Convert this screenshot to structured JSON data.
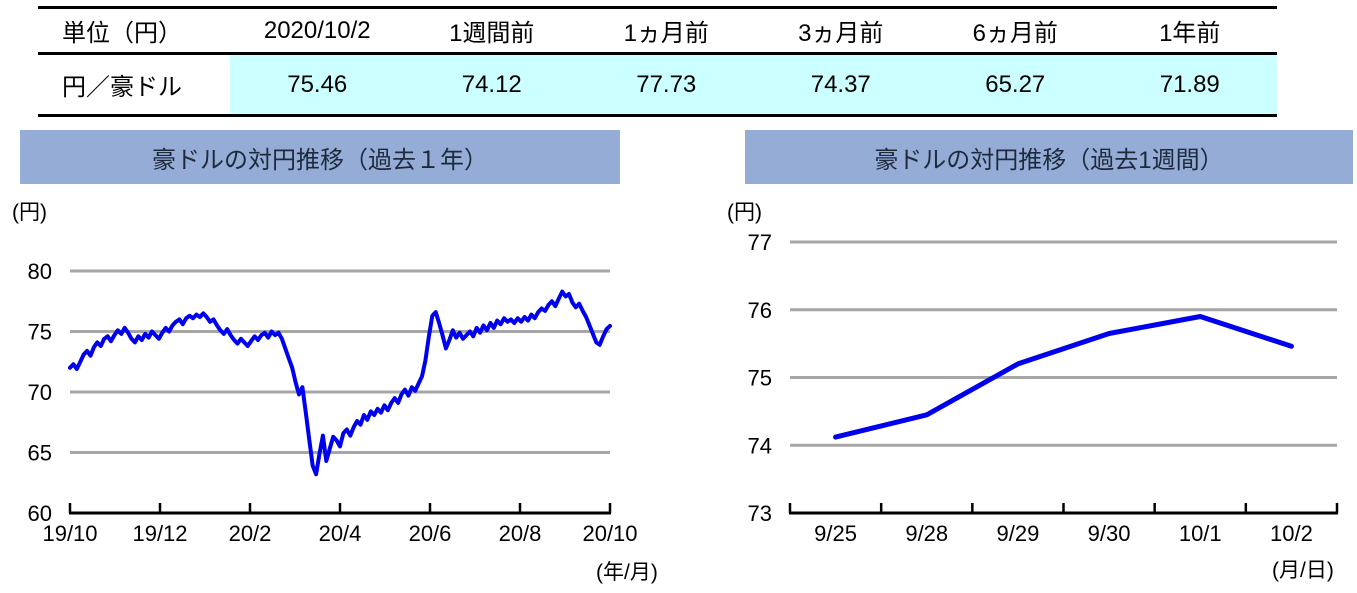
{
  "colors": {
    "line": "#0000EE",
    "gridline": "#A6A6A6",
    "title_bar_bg": "#95ACD6",
    "highlight_cell_bg": "#CCFFFF",
    "axis": "#000000"
  },
  "table": {
    "unit_header": "単位（円）",
    "headers": [
      "2020/10/2",
      "1週間前",
      "1ヵ月前",
      "3ヵ月前",
      "6ヵ月前",
      "1年前"
    ],
    "row_label": "円／豪ドル",
    "values": [
      "75.46",
      "74.12",
      "77.73",
      "74.37",
      "65.27",
      "71.89"
    ]
  },
  "chart_data": [
    {
      "type": "line",
      "title": "豪ドルの対円推移（過去１年）",
      "unit_label": "(円)",
      "x_axis_unit": "(年/月)",
      "x_tick_labels": [
        "19/10",
        "19/12",
        "20/2",
        "20/4",
        "20/6",
        "20/8",
        "20/10"
      ],
      "x_mode": "span",
      "ylim": [
        60,
        80
      ],
      "y_ticks": [
        60,
        65,
        70,
        75,
        80
      ],
      "grid": true,
      "legend": "none",
      "line_color": "#0000EE",
      "line_width": 4,
      "series": [
        {
          "name": "円/豪ドル",
          "values": [
            72.0,
            72.3,
            71.9,
            72.5,
            73.1,
            73.4,
            73.0,
            73.7,
            74.1,
            73.8,
            74.4,
            74.6,
            74.2,
            74.7,
            75.1,
            74.8,
            75.3,
            74.9,
            74.4,
            74.1,
            74.6,
            74.3,
            74.8,
            74.5,
            75.0,
            74.7,
            74.4,
            74.9,
            75.3,
            75.0,
            75.5,
            75.8,
            76.0,
            75.6,
            76.1,
            76.3,
            76.1,
            76.4,
            76.2,
            76.5,
            76.2,
            75.8,
            76.0,
            75.5,
            75.1,
            74.8,
            75.2,
            74.7,
            74.3,
            74.0,
            74.4,
            74.1,
            73.8,
            74.2,
            74.6,
            74.3,
            74.7,
            74.9,
            74.5,
            75.0,
            74.7,
            74.9,
            74.4,
            73.6,
            72.8,
            72.0,
            70.8,
            69.8,
            70.4,
            68.3,
            66.1,
            63.9,
            63.2,
            64.9,
            66.4,
            64.3,
            65.3,
            66.3,
            66.0,
            65.5,
            66.6,
            66.9,
            66.4,
            67.1,
            67.6,
            67.3,
            68.1,
            67.7,
            68.4,
            68.1,
            68.6,
            68.3,
            68.9,
            68.5,
            69.1,
            69.5,
            69.1,
            69.8,
            70.2,
            69.7,
            70.4,
            70.1,
            70.7,
            71.3,
            72.6,
            74.6,
            76.3,
            76.6,
            75.7,
            74.7,
            73.6,
            74.3,
            75.1,
            74.5,
            74.9,
            74.4,
            74.7,
            75.0,
            74.6,
            75.3,
            74.9,
            75.5,
            75.1,
            75.7,
            75.3,
            75.9,
            75.6,
            76.1,
            75.8,
            76.0,
            75.7,
            76.1,
            75.8,
            76.2,
            75.9,
            76.4,
            76.1,
            76.6,
            76.9,
            76.7,
            77.2,
            77.5,
            77.1,
            77.7,
            78.3,
            77.9,
            78.1,
            77.4,
            77.0,
            77.3,
            76.7,
            76.2,
            75.5,
            74.8,
            74.1,
            73.9,
            74.6,
            75.2,
            75.46
          ]
        }
      ]
    },
    {
      "type": "line",
      "title": "豪ドルの対円推移（過去1週間）",
      "unit_label": "(円)",
      "x_axis_unit": "(月/日)",
      "x_tick_labels": [
        "9/25",
        "9/28",
        "9/29",
        "9/30",
        "10/1",
        "10/2"
      ],
      "x_mode": "band",
      "ylim": [
        73,
        77
      ],
      "y_ticks": [
        73,
        74,
        75,
        76,
        77
      ],
      "grid": true,
      "legend": "none",
      "line_color": "#0000EE",
      "line_width": 5,
      "series": [
        {
          "name": "円/豪ドル",
          "values": [
            74.12,
            74.45,
            75.2,
            75.65,
            75.9,
            75.46
          ]
        }
      ]
    }
  ]
}
